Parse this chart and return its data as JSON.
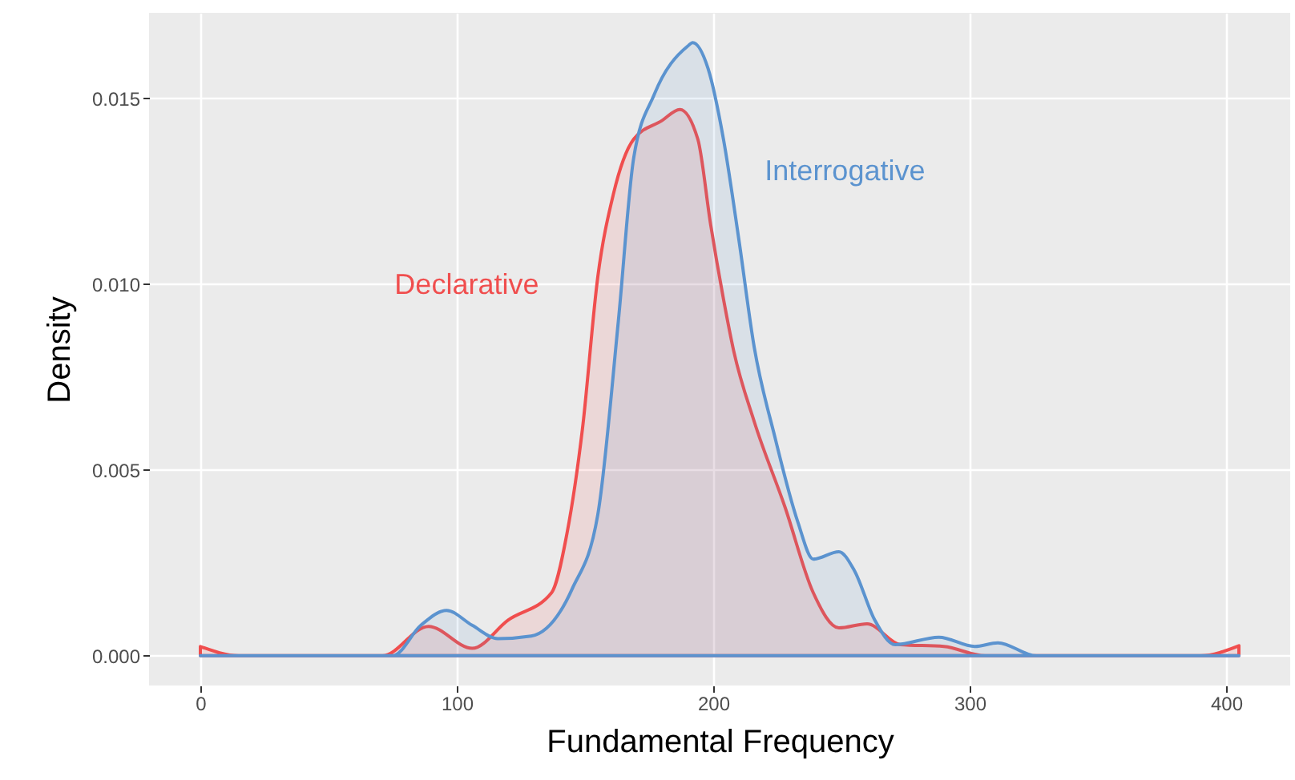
{
  "chart_data": {
    "type": "area",
    "xlabel": "Fundamental Frequency",
    "ylabel": "Density",
    "xlim": [
      -20,
      425
    ],
    "ylim": [
      -0.0008,
      0.0173
    ],
    "xticks": [
      0,
      100,
      200,
      300,
      400
    ],
    "yticks": [
      {
        "value": 0,
        "label": "0.000"
      },
      {
        "value": 0.005,
        "label": "0.005"
      },
      {
        "value": 0.01,
        "label": "0.010"
      },
      {
        "value": 0.015,
        "label": "0.015"
      }
    ],
    "grid": true,
    "series": [
      {
        "name": "Declarative",
        "color": "#f04e4e",
        "x": [
          0,
          15,
          71,
          89,
          106,
          120,
          137,
          143,
          149,
          155,
          161,
          169,
          180,
          187,
          194,
          199,
          204,
          208,
          216,
          228,
          239,
          249,
          260,
          273,
          290,
          306,
          330,
          390,
          405
        ],
        "values": [
          0.00025,
          0,
          0,
          0.00079,
          0.0002,
          0.00096,
          0.0017,
          0.0033,
          0.0061,
          0.0102,
          0.0124,
          0.0139,
          0.0144,
          0.0147,
          0.0139,
          0.0116,
          0.0096,
          0.0082,
          0.0063,
          0.004,
          0.0017,
          0.00075,
          0.00086,
          0.0003,
          0.00025,
          0,
          0,
          0,
          0.00027
        ]
      },
      {
        "name": "Interrogative",
        "color": "#5b93cf",
        "x": [
          0,
          75,
          86,
          96,
          106,
          116,
          129,
          145,
          155,
          163,
          169,
          177,
          190,
          192,
          198,
          204,
          210,
          216,
          224,
          233,
          239,
          249,
          255,
          263,
          271,
          288,
          302,
          311,
          326,
          405
        ],
        "values": [
          0,
          0,
          0.00082,
          0.00122,
          0.00082,
          0.00046,
          0.00053,
          0.0018,
          0.0038,
          0.009,
          0.0134,
          0.0151,
          0.0164,
          0.0165,
          0.0158,
          0.0139,
          0.0112,
          0.0083,
          0.0059,
          0.0036,
          0.0026,
          0.0028,
          0.0023,
          0.00096,
          0.0003,
          0.0005,
          0.00025,
          0.00035,
          0,
          0
        ]
      }
    ]
  }
}
